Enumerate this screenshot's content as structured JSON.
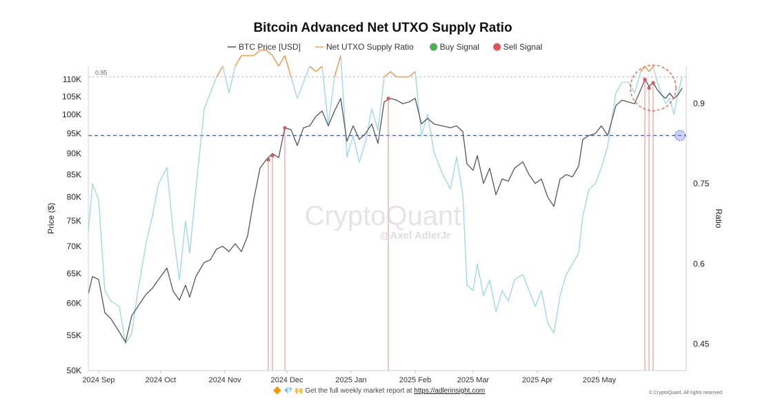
{
  "chart_data": {
    "type": "line",
    "title": "Bitcoin Advanced Net UTXO Supply Ratio",
    "legend": [
      {
        "label": "BTC Price [USD]",
        "color": "#555555",
        "kind": "line"
      },
      {
        "label": "Net UTXO Supply Ratio",
        "color": "#f4a259",
        "kind": "line"
      },
      {
        "label": "Buy Signal",
        "color": "#4caf50",
        "kind": "dot"
      },
      {
        "label": "Sell Signal",
        "color": "#e05555",
        "kind": "dot"
      }
    ],
    "legend_position": "top-center",
    "y_left": {
      "label": "Price ($)",
      "scale": "log",
      "range": [
        50000,
        114000
      ],
      "ticks": [
        50000,
        55000,
        60000,
        65000,
        70000,
        75000,
        80000,
        85000,
        90000,
        95000,
        100000,
        105000,
        110000
      ],
      "tick_labels": [
        "50K",
        "55K",
        "60K",
        "65K",
        "70K",
        "75K",
        "80K",
        "85K",
        "90K",
        "95K",
        "100K",
        "105K",
        "110K"
      ]
    },
    "y_right": {
      "label": "Ratio",
      "range": [
        0.4,
        0.97
      ],
      "ticks": [
        0.45,
        0.6,
        0.75,
        0.9
      ],
      "tick_labels": [
        "0.45",
        "0.6",
        "0.75",
        "0.9"
      ]
    },
    "x_axis": {
      "start": "2024-08-27",
      "end": "2025-06-12",
      "ticks": [
        "2024-09-01",
        "2024-10-01",
        "2024-11-01",
        "2024-12-01",
        "2025-01-01",
        "2025-02-01",
        "2025-03-01",
        "2025-04-01",
        "2025-05-01"
      ],
      "tick_labels": [
        "2024 Sep",
        "2024 Oct",
        "2024 Nov",
        "2024 Dec",
        "2025 Jan",
        "2025 Feb",
        "2025 Mar",
        "2025 Apr",
        "2025 May"
      ]
    },
    "reference_line": {
      "label": "0.95",
      "ratio": 0.95
    },
    "current_price_line": 94500,
    "series": [
      {
        "name": "BTC Price [USD]",
        "axis": "left",
        "color": "#555555",
        "points": [
          [
            "2024-08-27",
            61500
          ],
          [
            "2024-08-29",
            64500
          ],
          [
            "2024-09-01",
            64000
          ],
          [
            "2024-09-04",
            58500
          ],
          [
            "2024-09-07",
            57500
          ],
          [
            "2024-09-11",
            55500
          ],
          [
            "2024-09-14",
            54000
          ],
          [
            "2024-09-17",
            58000
          ],
          [
            "2024-09-20",
            59500
          ],
          [
            "2024-09-24",
            61500
          ],
          [
            "2024-09-27",
            62500
          ],
          [
            "2024-09-30",
            64000
          ],
          [
            "2024-10-04",
            66000
          ],
          [
            "2024-10-07",
            62000
          ],
          [
            "2024-10-10",
            60500
          ],
          [
            "2024-10-13",
            63000
          ],
          [
            "2024-10-15",
            61000
          ],
          [
            "2024-10-18",
            64500
          ],
          [
            "2024-10-22",
            67000
          ],
          [
            "2024-10-25",
            67500
          ],
          [
            "2024-10-28",
            69500
          ],
          [
            "2024-10-31",
            70000
          ],
          [
            "2024-11-03",
            69000
          ],
          [
            "2024-11-06",
            70500
          ],
          [
            "2024-11-09",
            69000
          ],
          [
            "2024-11-12",
            72000
          ],
          [
            "2024-11-15",
            79500
          ],
          [
            "2024-11-18",
            86500
          ],
          [
            "2024-11-21",
            88500
          ],
          [
            "2024-11-24",
            90000
          ],
          [
            "2024-11-27",
            89000
          ],
          [
            "2024-11-30",
            96500
          ],
          [
            "2024-12-03",
            96000
          ],
          [
            "2024-12-06",
            92000
          ],
          [
            "2024-12-09",
            96500
          ],
          [
            "2024-12-12",
            97000
          ],
          [
            "2024-12-15",
            99500
          ],
          [
            "2024-12-18",
            101000
          ],
          [
            "2024-12-21",
            97000
          ],
          [
            "2024-12-24",
            101000
          ],
          [
            "2024-12-27",
            104500
          ],
          [
            "2024-12-30",
            93000
          ],
          [
            "2025-01-02",
            97000
          ],
          [
            "2025-01-05",
            93500
          ],
          [
            "2025-01-08",
            95000
          ],
          [
            "2025-01-11",
            97500
          ],
          [
            "2025-01-14",
            92500
          ],
          [
            "2025-01-17",
            103500
          ],
          [
            "2025-01-20",
            104500
          ],
          [
            "2025-01-23",
            104000
          ],
          [
            "2025-01-26",
            103000
          ],
          [
            "2025-01-29",
            103500
          ],
          [
            "2025-02-01",
            104500
          ],
          [
            "2025-02-04",
            97500
          ],
          [
            "2025-02-07",
            99000
          ],
          [
            "2025-02-10",
            97500
          ],
          [
            "2025-02-14",
            97000
          ],
          [
            "2025-02-18",
            96500
          ],
          [
            "2025-02-21",
            97000
          ],
          [
            "2025-02-24",
            95500
          ],
          [
            "2025-02-26",
            87500
          ],
          [
            "2025-03-01",
            86000
          ],
          [
            "2025-03-03",
            89500
          ],
          [
            "2025-03-06",
            83000
          ],
          [
            "2025-03-09",
            86500
          ],
          [
            "2025-03-12",
            80500
          ],
          [
            "2025-03-15",
            84000
          ],
          [
            "2025-03-18",
            83500
          ],
          [
            "2025-03-21",
            86500
          ],
          [
            "2025-03-25",
            88000
          ],
          [
            "2025-03-28",
            85000
          ],
          [
            "2025-03-31",
            83000
          ],
          [
            "2025-04-03",
            84000
          ],
          [
            "2025-04-06",
            80000
          ],
          [
            "2025-04-09",
            78000
          ],
          [
            "2025-04-12",
            84000
          ],
          [
            "2025-04-15",
            85000
          ],
          [
            "2025-04-18",
            84500
          ],
          [
            "2025-04-21",
            87000
          ],
          [
            "2025-04-23",
            93500
          ],
          [
            "2025-04-26",
            94500
          ],
          [
            "2025-04-29",
            95000
          ],
          [
            "2025-05-02",
            97000
          ],
          [
            "2025-05-05",
            94500
          ],
          [
            "2025-05-09",
            102500
          ],
          [
            "2025-05-12",
            104000
          ],
          [
            "2025-05-15",
            103500
          ],
          [
            "2025-05-18",
            103000
          ],
          [
            "2025-05-21",
            107000
          ],
          [
            "2025-05-23",
            110000
          ],
          [
            "2025-05-25",
            108000
          ],
          [
            "2025-05-27",
            109000
          ],
          [
            "2025-05-29",
            107000
          ],
          [
            "2025-05-31",
            105500
          ],
          [
            "2025-06-02",
            104500
          ],
          [
            "2025-06-04",
            106000
          ],
          [
            "2025-06-06",
            104500
          ],
          [
            "2025-06-08",
            105500
          ],
          [
            "2025-06-10",
            107500
          ]
        ]
      },
      {
        "name": "Net UTXO Supply Ratio",
        "axis": "right",
        "color": "#9fd8e6",
        "highlight_color": "#f4a259",
        "highlight_threshold": 0.95,
        "points": [
          [
            "2024-08-27",
            0.66
          ],
          [
            "2024-08-29",
            0.75
          ],
          [
            "2024-09-01",
            0.72
          ],
          [
            "2024-09-04",
            0.55
          ],
          [
            "2024-09-07",
            0.53
          ],
          [
            "2024-09-11",
            0.52
          ],
          [
            "2024-09-14",
            0.45
          ],
          [
            "2024-09-17",
            0.47
          ],
          [
            "2024-09-20",
            0.55
          ],
          [
            "2024-09-24",
            0.64
          ],
          [
            "2024-09-27",
            0.69
          ],
          [
            "2024-09-30",
            0.75
          ],
          [
            "2024-10-04",
            0.78
          ],
          [
            "2024-10-07",
            0.66
          ],
          [
            "2024-10-10",
            0.57
          ],
          [
            "2024-10-13",
            0.68
          ],
          [
            "2024-10-15",
            0.62
          ],
          [
            "2024-10-18",
            0.74
          ],
          [
            "2024-10-22",
            0.89
          ],
          [
            "2024-10-25",
            0.92
          ],
          [
            "2024-10-28",
            0.95
          ],
          [
            "2024-10-31",
            0.97
          ],
          [
            "2024-11-03",
            0.92
          ],
          [
            "2024-11-06",
            0.97
          ],
          [
            "2024-11-09",
            0.99
          ],
          [
            "2024-11-12",
            0.99
          ],
          [
            "2024-11-15",
            0.99
          ],
          [
            "2024-11-18",
            1.0
          ],
          [
            "2024-11-21",
            1.0
          ],
          [
            "2024-11-24",
            0.99
          ],
          [
            "2024-11-27",
            0.97
          ],
          [
            "2024-11-30",
            0.99
          ],
          [
            "2024-12-03",
            0.95
          ],
          [
            "2024-12-06",
            0.91
          ],
          [
            "2024-12-09",
            0.94
          ],
          [
            "2024-12-12",
            0.97
          ],
          [
            "2024-12-15",
            0.96
          ],
          [
            "2024-12-18",
            0.97
          ],
          [
            "2024-12-21",
            0.86
          ],
          [
            "2024-12-24",
            0.95
          ],
          [
            "2024-12-27",
            0.99
          ],
          [
            "2024-12-30",
            0.8
          ],
          [
            "2025-01-02",
            0.84
          ],
          [
            "2025-01-05",
            0.79
          ],
          [
            "2025-01-08",
            0.83
          ],
          [
            "2025-01-11",
            0.89
          ],
          [
            "2025-01-14",
            0.85
          ],
          [
            "2025-01-17",
            0.95
          ],
          [
            "2025-01-20",
            0.96
          ],
          [
            "2025-01-23",
            0.95
          ],
          [
            "2025-01-26",
            0.95
          ],
          [
            "2025-01-29",
            0.95
          ],
          [
            "2025-02-01",
            0.96
          ],
          [
            "2025-02-04",
            0.84
          ],
          [
            "2025-02-07",
            0.88
          ],
          [
            "2025-02-10",
            0.81
          ],
          [
            "2025-02-14",
            0.77
          ],
          [
            "2025-02-18",
            0.74
          ],
          [
            "2025-02-21",
            0.8
          ],
          [
            "2025-02-24",
            0.73
          ],
          [
            "2025-02-26",
            0.56
          ],
          [
            "2025-03-01",
            0.55
          ],
          [
            "2025-03-03",
            0.6
          ],
          [
            "2025-03-06",
            0.54
          ],
          [
            "2025-03-09",
            0.57
          ],
          [
            "2025-03-12",
            0.51
          ],
          [
            "2025-03-15",
            0.55
          ],
          [
            "2025-03-18",
            0.53
          ],
          [
            "2025-03-21",
            0.57
          ],
          [
            "2025-03-25",
            0.58
          ],
          [
            "2025-03-28",
            0.55
          ],
          [
            "2025-03-31",
            0.52
          ],
          [
            "2025-04-03",
            0.55
          ],
          [
            "2025-04-06",
            0.49
          ],
          [
            "2025-04-09",
            0.47
          ],
          [
            "2025-04-12",
            0.54
          ],
          [
            "2025-04-15",
            0.58
          ],
          [
            "2025-04-18",
            0.6
          ],
          [
            "2025-04-21",
            0.62
          ],
          [
            "2025-04-23",
            0.69
          ],
          [
            "2025-04-26",
            0.74
          ],
          [
            "2025-04-29",
            0.75
          ],
          [
            "2025-05-02",
            0.78
          ],
          [
            "2025-05-05",
            0.82
          ],
          [
            "2025-05-09",
            0.92
          ],
          [
            "2025-05-12",
            0.94
          ],
          [
            "2025-05-15",
            0.94
          ],
          [
            "2025-05-18",
            0.92
          ],
          [
            "2025-05-21",
            0.96
          ],
          [
            "2025-05-23",
            0.97
          ],
          [
            "2025-05-25",
            0.96
          ],
          [
            "2025-05-27",
            0.97
          ],
          [
            "2025-05-29",
            0.94
          ],
          [
            "2025-05-31",
            0.92
          ],
          [
            "2025-06-02",
            0.9
          ],
          [
            "2025-06-04",
            0.91
          ],
          [
            "2025-06-06",
            0.88
          ],
          [
            "2025-06-08",
            0.92
          ],
          [
            "2025-06-10",
            0.95
          ]
        ]
      }
    ],
    "sell_signals": [
      {
        "date": "2024-11-22",
        "price": 88500
      },
      {
        "date": "2024-11-24",
        "price": 89500
      },
      {
        "date": "2024-11-30",
        "price": 96500
      },
      {
        "date": "2025-01-19",
        "price": 104500
      },
      {
        "date": "2025-05-23",
        "price": 110000
      },
      {
        "date": "2025-05-25",
        "price": 107500
      },
      {
        "date": "2025-05-27",
        "price": 109000
      }
    ],
    "buy_signals": [],
    "annotations": {
      "sell_zone": {
        "date": "2025-05-27",
        "price": 107500
      },
      "buy_marker": {
        "date": "2025-06-09",
        "price": 94500
      }
    }
  },
  "watermark": {
    "brand": "CryptoQuant",
    "author": "@Axel AdlerJr"
  },
  "footer": {
    "emojis": "🔶 💎 🙌",
    "text": "Get the full weekly market report at",
    "link": "https://adlerinsight.com",
    "copyright": "© CryptoQuant. All rights reserved"
  }
}
